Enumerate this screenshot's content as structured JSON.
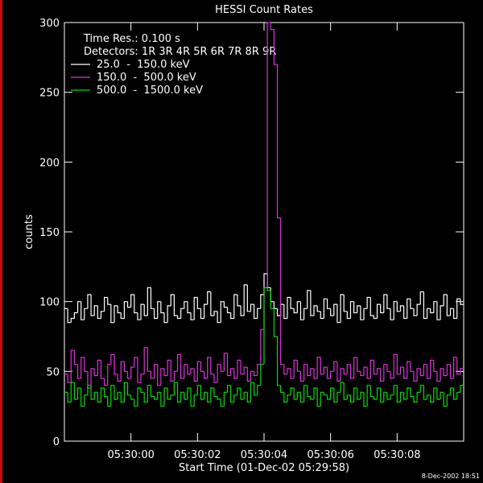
{
  "chart_data": {
    "type": "step",
    "title": "HESSI Count Rates",
    "y_label": "counts",
    "x_label": "Start Time (01-Dec-02 05:29:58)",
    "annotations": [
      "Time Res.: 0.100 s",
      "Detectors: 1R 3R 4R 5R 6R 7R 8R 9R"
    ],
    "timestamp": "8-Dec-2002 18:51",
    "xlim": [
      0,
      12
    ],
    "xticks": [
      {
        "value": 2,
        "label": "05:30:00"
      },
      {
        "value": 4,
        "label": "05:30:02"
      },
      {
        "value": 6,
        "label": "05:30:04"
      },
      {
        "value": 8,
        "label": "05:30:06"
      },
      {
        "value": 10,
        "label": "05:30:08"
      }
    ],
    "ylim": [
      0,
      300
    ],
    "yticks": [
      0,
      50,
      100,
      150,
      200,
      250,
      300
    ],
    "x": [
      0,
      0.1,
      0.2,
      0.3,
      0.4,
      0.5,
      0.6,
      0.7,
      0.8,
      0.9,
      1,
      1.1,
      1.2,
      1.3,
      1.4,
      1.5,
      1.6,
      1.7,
      1.8,
      1.9,
      2,
      2.1,
      2.2,
      2.3,
      2.4,
      2.5,
      2.6,
      2.7,
      2.8,
      2.9,
      3,
      3.1,
      3.2,
      3.3,
      3.4,
      3.5,
      3.6,
      3.7,
      3.8,
      3.9,
      4,
      4.1,
      4.2,
      4.3,
      4.4,
      4.5,
      4.6,
      4.7,
      4.8,
      4.9,
      5,
      5.1,
      5.2,
      5.3,
      5.4,
      5.5,
      5.6,
      5.7,
      5.8,
      5.9,
      6,
      6.1,
      6.2,
      6.3,
      6.4,
      6.5,
      6.6,
      6.7,
      6.8,
      6.9,
      7,
      7.1,
      7.2,
      7.3,
      7.4,
      7.5,
      7.6,
      7.7,
      7.8,
      7.9,
      8,
      8.1,
      8.2,
      8.3,
      8.4,
      8.5,
      8.6,
      8.7,
      8.8,
      8.9,
      9,
      9.1,
      9.2,
      9.3,
      9.4,
      9.5,
      9.6,
      9.7,
      9.8,
      9.9,
      10,
      10.1,
      10.2,
      10.3,
      10.4,
      10.5,
      10.6,
      10.7,
      10.8,
      10.9,
      11,
      11.1,
      11.2,
      11.3,
      11.4,
      11.5,
      11.6,
      11.7,
      11.8,
      11.9
    ],
    "series": [
      {
        "name": "25.0  -  150.0 keV",
        "color": "#ffffff",
        "values": [
          95,
          85,
          88,
          92,
          100,
          87,
          95,
          105,
          90,
          97,
          88,
          93,
          103,
          98,
          85,
          97,
          92,
          88,
          100,
          96,
          105,
          92,
          87,
          98,
          90,
          110,
          95,
          88,
          100,
          92,
          85,
          97,
          105,
          90,
          88,
          95,
          100,
          92,
          87,
          103,
          95,
          88,
          98,
          107,
          90,
          93,
          85,
          100,
          96,
          92,
          88,
          105,
          97,
          90,
          112,
          93,
          98,
          88,
          95,
          105,
          120,
          110,
          100,
          95,
          90,
          98,
          88,
          103,
          95,
          92,
          100,
          87,
          95,
          108,
          90,
          97,
          93,
          88,
          102,
          95,
          90,
          98,
          85,
          105,
          93,
          88,
          100,
          92,
          97,
          87,
          95,
          103,
          90,
          88,
          98,
          92,
          105,
          95,
          87,
          100,
          93,
          97,
          88,
          102,
          95,
          90,
          98,
          107,
          88,
          95,
          92,
          100,
          87,
          97,
          105,
          90,
          95,
          88,
          102,
          98
        ]
      },
      {
        "name": "150.0  -  500.0 keV",
        "color": "#e030e0",
        "values": [
          48,
          42,
          65,
          55,
          45,
          60,
          50,
          38,
          52,
          47,
          58,
          45,
          40,
          55,
          62,
          48,
          43,
          57,
          50,
          45,
          53,
          60,
          42,
          48,
          67,
          50,
          45,
          55,
          40,
          52,
          47,
          58,
          43,
          50,
          62,
          45,
          55,
          48,
          52,
          43,
          57,
          50,
          45,
          60,
          48,
          42,
          55,
          50,
          63,
          47,
          52,
          45,
          58,
          48,
          53,
          43,
          50,
          47,
          55,
          80,
          110,
          300,
          295,
          270,
          160,
          55,
          48,
          52,
          45,
          58,
          50,
          43,
          55,
          47,
          52,
          45,
          60,
          48,
          53,
          45,
          50,
          57,
          43,
          52,
          48,
          55,
          45,
          60,
          50,
          47,
          53,
          45,
          58,
          48,
          52,
          43,
          55,
          50,
          45,
          62,
          48,
          53,
          45,
          57,
          50,
          43,
          52,
          47,
          55,
          45,
          58,
          50,
          43,
          52,
          47,
          55,
          45,
          60,
          48,
          52
        ]
      },
      {
        "name": "500.0  -  1500.0 keV",
        "color": "#00e000",
        "values": [
          35,
          28,
          42,
          30,
          38,
          25,
          33,
          40,
          30,
          35,
          28,
          38,
          32,
          25,
          40,
          30,
          35,
          28,
          42,
          33,
          30,
          25,
          38,
          35,
          28,
          40,
          32,
          30,
          35,
          25,
          38,
          30,
          33,
          42,
          28,
          35,
          30,
          38,
          25,
          33,
          40,
          30,
          35,
          28,
          38,
          32,
          30,
          25,
          35,
          40,
          28,
          33,
          38,
          30,
          35,
          28,
          42,
          33,
          40,
          55,
          110,
          108,
          95,
          75,
          40,
          35,
          28,
          33,
          38,
          30,
          35,
          28,
          40,
          32,
          30,
          38,
          25,
          35,
          33,
          30,
          38,
          28,
          35,
          42,
          30,
          33,
          28,
          38,
          30,
          35,
          25,
          40,
          32,
          30,
          38,
          28,
          35,
          30,
          33,
          40,
          28,
          35,
          30,
          38,
          32,
          28,
          35,
          40,
          30,
          33,
          28,
          38,
          30,
          35,
          25,
          33,
          38,
          30,
          35,
          40
        ]
      }
    ]
  }
}
